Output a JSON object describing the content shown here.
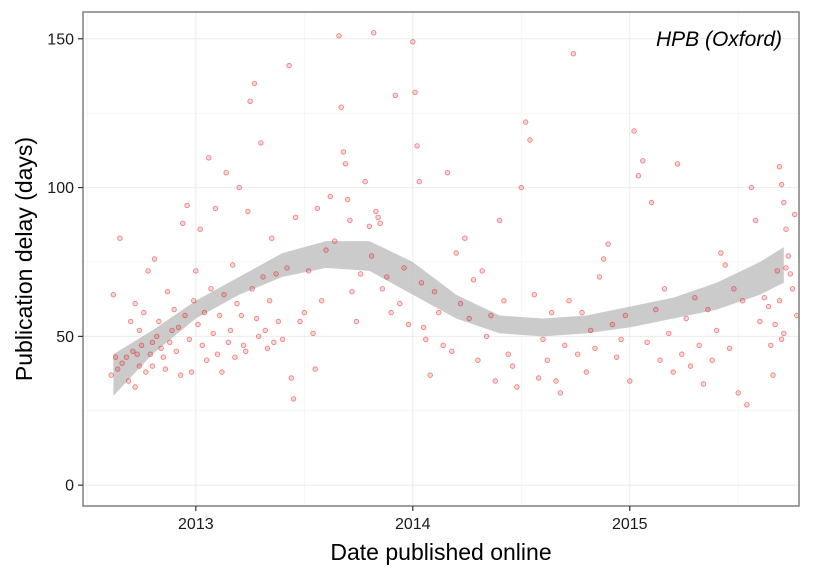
{
  "chart_data": {
    "type": "scatter",
    "title": "",
    "annotation": "HPB (Oxford)",
    "xlabel": "Date published online",
    "ylabel": "Publication delay (days)",
    "xlim": [
      2012.48,
      2015.78
    ],
    "ylim": [
      -7,
      159
    ],
    "x_ticks": [
      2013,
      2014,
      2015
    ],
    "x_tick_labels": [
      "2013",
      "2014",
      "2015"
    ],
    "y_ticks": [
      0,
      50,
      100,
      150
    ],
    "y_tick_labels": [
      "0",
      "50",
      "100",
      "150"
    ],
    "grid": true,
    "point_color": "#e41a1c",
    "band_color": "#bebebe",
    "smooth": {
      "x": [
        2012.62,
        2012.8,
        2013.0,
        2013.2,
        2013.4,
        2013.6,
        2013.8,
        2014.0,
        2014.2,
        2014.4,
        2014.6,
        2014.8,
        2015.0,
        2015.2,
        2015.4,
        2015.6,
        2015.71
      ],
      "lower": [
        30,
        44,
        56,
        64,
        70,
        73,
        72,
        64,
        56,
        51,
        50,
        51,
        53,
        56,
        59,
        64,
        68
      ],
      "upper": [
        44,
        52,
        62,
        70,
        78,
        82,
        82,
        75,
        64,
        57,
        56,
        57,
        60,
        63,
        68,
        75,
        80
      ]
    },
    "points": [
      [
        2012.61,
        37
      ],
      [
        2012.62,
        64
      ],
      [
        2012.63,
        43
      ],
      [
        2012.64,
        39
      ],
      [
        2012.65,
        83
      ],
      [
        2012.66,
        41
      ],
      [
        2012.68,
        43
      ],
      [
        2012.69,
        35
      ],
      [
        2012.7,
        55
      ],
      [
        2012.71,
        45
      ],
      [
        2012.72,
        33
      ],
      [
        2012.72,
        61
      ],
      [
        2012.73,
        44
      ],
      [
        2012.74,
        40
      ],
      [
        2012.74,
        52
      ],
      [
        2012.75,
        47
      ],
      [
        2012.76,
        58
      ],
      [
        2012.77,
        38
      ],
      [
        2012.78,
        72
      ],
      [
        2012.79,
        44
      ],
      [
        2012.8,
        48
      ],
      [
        2012.8,
        40
      ],
      [
        2012.81,
        76
      ],
      [
        2012.82,
        50
      ],
      [
        2012.83,
        55
      ],
      [
        2012.84,
        46
      ],
      [
        2012.85,
        43
      ],
      [
        2012.86,
        39
      ],
      [
        2012.87,
        65
      ],
      [
        2012.88,
        48
      ],
      [
        2012.89,
        52
      ],
      [
        2012.9,
        59
      ],
      [
        2012.91,
        45
      ],
      [
        2012.92,
        53
      ],
      [
        2012.93,
        37
      ],
      [
        2012.94,
        88
      ],
      [
        2012.95,
        57
      ],
      [
        2012.96,
        94
      ],
      [
        2012.97,
        49
      ],
      [
        2012.98,
        38
      ],
      [
        2012.99,
        62
      ],
      [
        2013.0,
        72
      ],
      [
        2013.01,
        54
      ],
      [
        2013.02,
        86
      ],
      [
        2013.03,
        47
      ],
      [
        2013.04,
        58
      ],
      [
        2013.05,
        42
      ],
      [
        2013.06,
        110
      ],
      [
        2013.07,
        66
      ],
      [
        2013.08,
        51
      ],
      [
        2013.09,
        93
      ],
      [
        2013.1,
        44
      ],
      [
        2013.11,
        57
      ],
      [
        2013.12,
        38
      ],
      [
        2013.13,
        64
      ],
      [
        2013.14,
        105
      ],
      [
        2013.15,
        48
      ],
      [
        2013.16,
        52
      ],
      [
        2013.17,
        74
      ],
      [
        2013.18,
        43
      ],
      [
        2013.19,
        61
      ],
      [
        2013.2,
        100
      ],
      [
        2013.21,
        57
      ],
      [
        2013.22,
        47
      ],
      [
        2013.23,
        45
      ],
      [
        2013.24,
        92
      ],
      [
        2013.25,
        129
      ],
      [
        2013.26,
        66
      ],
      [
        2013.27,
        135
      ],
      [
        2013.28,
        56
      ],
      [
        2013.29,
        50
      ],
      [
        2013.3,
        115
      ],
      [
        2013.31,
        70
      ],
      [
        2013.32,
        52
      ],
      [
        2013.33,
        46
      ],
      [
        2013.34,
        62
      ],
      [
        2013.35,
        83
      ],
      [
        2013.36,
        48
      ],
      [
        2013.37,
        71
      ],
      [
        2013.38,
        55
      ],
      [
        2013.4,
        49
      ],
      [
        2013.42,
        73
      ],
      [
        2013.43,
        141
      ],
      [
        2013.44,
        36
      ],
      [
        2013.45,
        29
      ],
      [
        2013.46,
        90
      ],
      [
        2013.48,
        55
      ],
      [
        2013.5,
        58
      ],
      [
        2013.52,
        72
      ],
      [
        2013.54,
        51
      ],
      [
        2013.55,
        39
      ],
      [
        2013.56,
        93
      ],
      [
        2013.58,
        62
      ],
      [
        2013.6,
        79
      ],
      [
        2013.62,
        97
      ],
      [
        2013.64,
        82
      ],
      [
        2013.66,
        151
      ],
      [
        2013.67,
        127
      ],
      [
        2013.68,
        112
      ],
      [
        2013.69,
        108
      ],
      [
        2013.7,
        96
      ],
      [
        2013.71,
        89
      ],
      [
        2013.72,
        65
      ],
      [
        2013.74,
        55
      ],
      [
        2013.76,
        71
      ],
      [
        2013.78,
        102
      ],
      [
        2013.8,
        87
      ],
      [
        2013.81,
        77
      ],
      [
        2013.82,
        152
      ],
      [
        2013.83,
        92
      ],
      [
        2013.84,
        90
      ],
      [
        2013.85,
        88
      ],
      [
        2013.86,
        66
      ],
      [
        2013.88,
        70
      ],
      [
        2013.9,
        58
      ],
      [
        2013.92,
        131
      ],
      [
        2013.94,
        61
      ],
      [
        2013.96,
        73
      ],
      [
        2013.98,
        54
      ],
      [
        2014.0,
        149
      ],
      [
        2014.01,
        132
      ],
      [
        2014.02,
        114
      ],
      [
        2014.03,
        102
      ],
      [
        2014.04,
        68
      ],
      [
        2014.05,
        53
      ],
      [
        2014.06,
        49
      ],
      [
        2014.08,
        37
      ],
      [
        2014.1,
        65
      ],
      [
        2014.12,
        58
      ],
      [
        2014.14,
        47
      ],
      [
        2014.16,
        105
      ],
      [
        2014.18,
        45
      ],
      [
        2014.2,
        78
      ],
      [
        2014.22,
        61
      ],
      [
        2014.24,
        83
      ],
      [
        2014.26,
        56
      ],
      [
        2014.28,
        69
      ],
      [
        2014.3,
        42
      ],
      [
        2014.32,
        72
      ],
      [
        2014.34,
        50
      ],
      [
        2014.36,
        57
      ],
      [
        2014.38,
        35
      ],
      [
        2014.4,
        89
      ],
      [
        2014.42,
        62
      ],
      [
        2014.44,
        44
      ],
      [
        2014.46,
        40
      ],
      [
        2014.48,
        33
      ],
      [
        2014.5,
        100
      ],
      [
        2014.52,
        122
      ],
      [
        2014.54,
        116
      ],
      [
        2014.56,
        64
      ],
      [
        2014.58,
        36
      ],
      [
        2014.6,
        49
      ],
      [
        2014.62,
        42
      ],
      [
        2014.64,
        58
      ],
      [
        2014.66,
        35
      ],
      [
        2014.68,
        31
      ],
      [
        2014.7,
        47
      ],
      [
        2014.72,
        62
      ],
      [
        2014.74,
        145
      ],
      [
        2014.76,
        44
      ],
      [
        2014.78,
        58
      ],
      [
        2014.8,
        38
      ],
      [
        2014.82,
        52
      ],
      [
        2014.84,
        46
      ],
      [
        2014.86,
        70
      ],
      [
        2014.88,
        76
      ],
      [
        2014.9,
        81
      ],
      [
        2014.92,
        54
      ],
      [
        2014.94,
        43
      ],
      [
        2014.96,
        49
      ],
      [
        2014.98,
        57
      ],
      [
        2015.0,
        35
      ],
      [
        2015.02,
        119
      ],
      [
        2015.04,
        104
      ],
      [
        2015.06,
        109
      ],
      [
        2015.08,
        48
      ],
      [
        2015.1,
        95
      ],
      [
        2015.12,
        59
      ],
      [
        2015.14,
        42
      ],
      [
        2015.16,
        66
      ],
      [
        2015.18,
        51
      ],
      [
        2015.2,
        38
      ],
      [
        2015.22,
        108
      ],
      [
        2015.24,
        44
      ],
      [
        2015.26,
        56
      ],
      [
        2015.28,
        40
      ],
      [
        2015.3,
        63
      ],
      [
        2015.32,
        47
      ],
      [
        2015.34,
        34
      ],
      [
        2015.36,
        59
      ],
      [
        2015.38,
        42
      ],
      [
        2015.4,
        52
      ],
      [
        2015.42,
        78
      ],
      [
        2015.44,
        74
      ],
      [
        2015.46,
        46
      ],
      [
        2015.48,
        66
      ],
      [
        2015.5,
        31
      ],
      [
        2015.52,
        62
      ],
      [
        2015.54,
        27
      ],
      [
        2015.56,
        100
      ],
      [
        2015.58,
        89
      ],
      [
        2015.6,
        55
      ],
      [
        2015.62,
        63
      ],
      [
        2015.64,
        60
      ],
      [
        2015.65,
        47
      ],
      [
        2015.66,
        37
      ],
      [
        2015.67,
        54
      ],
      [
        2015.68,
        72
      ],
      [
        2015.69,
        107
      ],
      [
        2015.7,
        101
      ],
      [
        2015.71,
        95
      ],
      [
        2015.72,
        86
      ],
      [
        2015.73,
        77
      ],
      [
        2015.74,
        71
      ],
      [
        2015.75,
        66
      ],
      [
        2015.76,
        91
      ],
      [
        2015.77,
        57
      ],
      [
        2015.69,
        62
      ],
      [
        2015.7,
        49
      ],
      [
        2015.71,
        51
      ],
      [
        2015.72,
        73
      ]
    ]
  }
}
